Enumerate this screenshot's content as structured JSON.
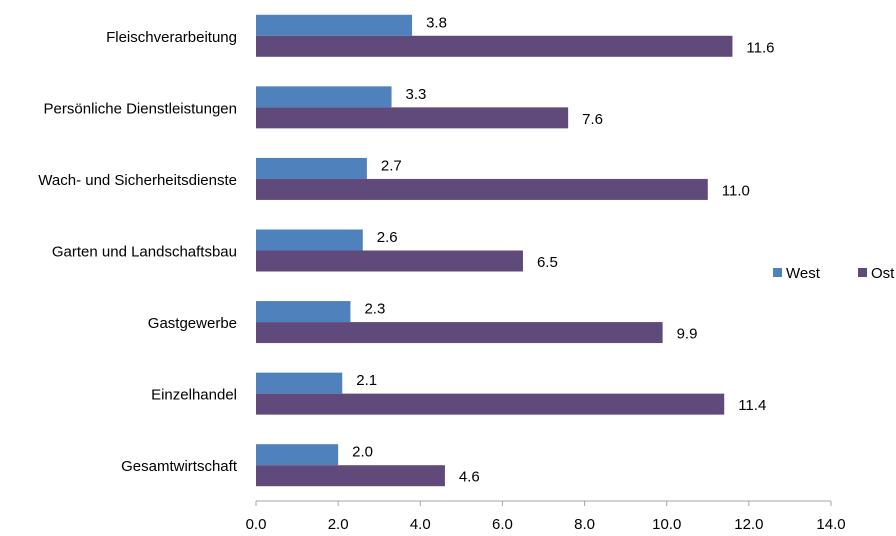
{
  "chart_data": {
    "type": "barh",
    "categories": [
      "Fleischverarbeitung",
      "Persönliche Dienstleistungen",
      "Wach- und Sicherheitsdienste",
      "Garten und Landschaftsbau",
      "Gastgewerbe",
      "Einzelhandel",
      "Gesamtwirtschaft"
    ],
    "series": [
      {
        "name": "West",
        "color": "#4f81bd",
        "values": [
          3.8,
          3.3,
          2.7,
          2.6,
          2.3,
          2.1,
          2.0
        ],
        "value_labels": [
          "3.8",
          "3.3",
          "2.7",
          "2.6",
          "2.3",
          "2.1",
          "2.0"
        ]
      },
      {
        "name": "Ost",
        "color": "#604a7b",
        "values": [
          11.6,
          7.6,
          11.0,
          6.5,
          9.9,
          11.4,
          4.6
        ],
        "value_labels": [
          "11.6",
          "7.6",
          "11.0",
          "6.5",
          "9.9",
          "11.4",
          "4.6"
        ]
      }
    ],
    "xlim": [
      0,
      14
    ],
    "xticks": [
      {
        "value": 0,
        "label": "0.0"
      },
      {
        "value": 2,
        "label": "2.0"
      },
      {
        "value": 4,
        "label": "4.0"
      },
      {
        "value": 6,
        "label": "6.0"
      },
      {
        "value": 8,
        "label": "8.0"
      },
      {
        "value": 10,
        "label": "10.0"
      },
      {
        "value": 12,
        "label": "12.0"
      },
      {
        "value": 14,
        "label": "14.0"
      }
    ],
    "legend": "right"
  }
}
